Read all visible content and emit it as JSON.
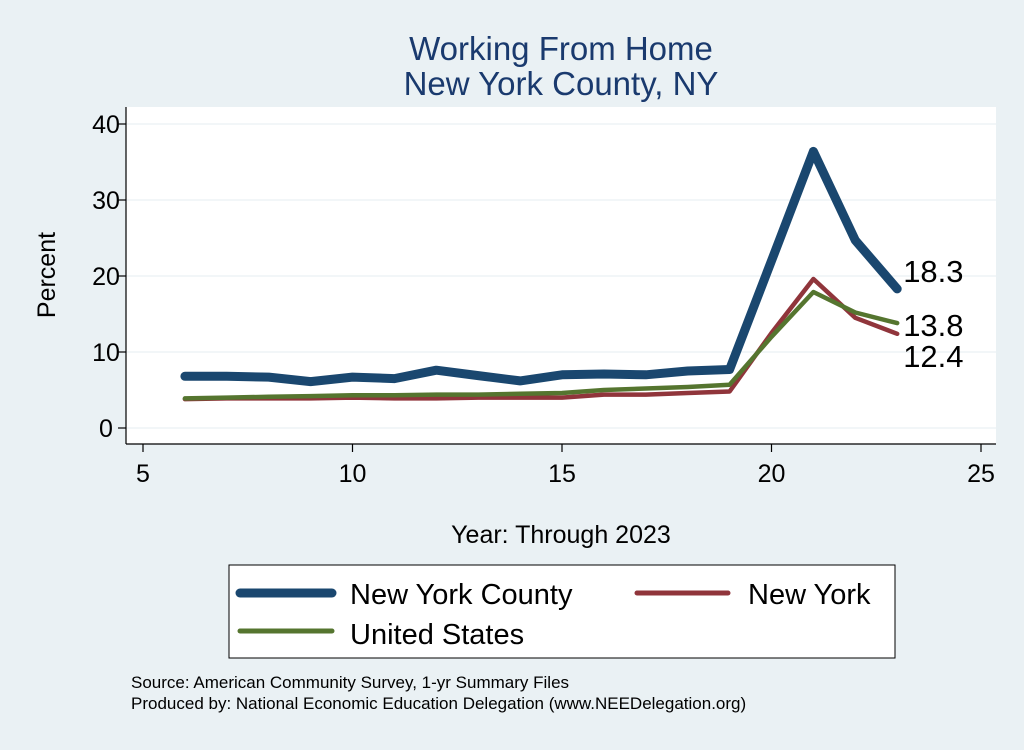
{
  "chart_data": {
    "type": "line",
    "title": [
      "Working From Home",
      "New York County, NY"
    ],
    "xlabel": "Year: Through 2023",
    "ylabel": "Percent",
    "xlim": [
      5,
      25
    ],
    "ylim": [
      0,
      40
    ],
    "x_ticks": [
      5,
      10,
      15,
      20,
      25
    ],
    "y_ticks": [
      0,
      10,
      20,
      30,
      40
    ],
    "grid": true,
    "legend_position": "bottom",
    "series": [
      {
        "name": "New York County",
        "color": "#1a476f",
        "x": [
          6,
          7,
          8,
          9,
          10,
          11,
          12,
          13,
          14,
          15,
          16,
          17,
          18,
          19,
          20,
          21,
          22,
          23
        ],
        "values": [
          6.8,
          6.8,
          6.7,
          6.1,
          6.7,
          6.5,
          7.6,
          6.9,
          6.2,
          7.0,
          7.1,
          7.0,
          7.5,
          7.7,
          22.0,
          36.4,
          24.7,
          18.3
        ],
        "end_label": "18.3"
      },
      {
        "name": "New York",
        "color": "#90353b",
        "x": [
          6,
          7,
          8,
          9,
          10,
          11,
          12,
          13,
          14,
          15,
          16,
          17,
          18,
          19,
          20,
          21,
          22,
          23
        ],
        "values": [
          3.8,
          3.9,
          3.9,
          3.9,
          4.0,
          3.9,
          3.9,
          4.0,
          4.0,
          4.0,
          4.4,
          4.4,
          4.6,
          4.8,
          12.5,
          19.6,
          14.5,
          12.4
        ],
        "end_label": "12.4"
      },
      {
        "name": "United States",
        "color": "#55752f",
        "x": [
          6,
          7,
          8,
          9,
          10,
          11,
          12,
          13,
          14,
          15,
          16,
          17,
          18,
          19,
          20,
          21,
          22,
          23
        ],
        "values": [
          3.9,
          4.0,
          4.1,
          4.2,
          4.3,
          4.3,
          4.4,
          4.4,
          4.5,
          4.6,
          5.0,
          5.2,
          5.4,
          5.7,
          12.0,
          17.9,
          15.2,
          13.8
        ],
        "end_label": "13.8"
      }
    ],
    "notes": [
      "Source: American Community Survey, 1-yr Summary Files",
      "Produced by: National Economic Education Delegation (www.NEEDelegation.org)"
    ]
  }
}
